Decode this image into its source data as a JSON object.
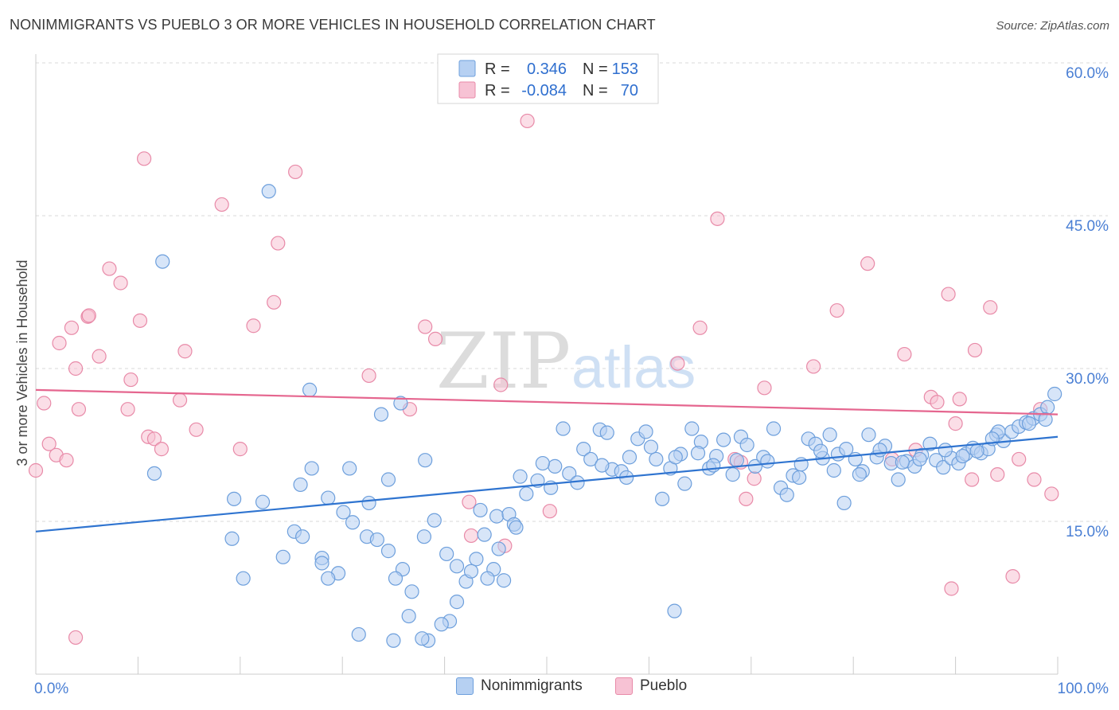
{
  "title": "NONIMMIGRANTS VS PUEBLO 3 OR MORE VEHICLES IN HOUSEHOLD CORRELATION CHART",
  "source": "Source: ZipAtlas.com",
  "watermark": {
    "zip": "ZIP",
    "atlas": "atlas"
  },
  "colors": {
    "blue_fill": "#b6d0f2",
    "blue_stroke": "#6d9fdc",
    "blue_line": "#2f74d0",
    "pink_fill": "#f7c2d4",
    "pink_stroke": "#e88aa8",
    "pink_line": "#e5668f",
    "tick_label": "#4a7fd4",
    "grid": "#d8d8d8"
  },
  "legend_box": {
    "rows": [
      {
        "r_label": "R =",
        "r_value": "0.346",
        "n_label": "N =",
        "n_value": "153"
      },
      {
        "r_label": "R =",
        "r_value": "-0.084",
        "n_label": "N =",
        "n_value": "70"
      }
    ]
  },
  "legend_bottom": [
    "Nonimmigrants",
    "Pueblo"
  ],
  "chart_data": {
    "type": "scatter",
    "title": "NONIMMIGRANTS VS PUEBLO 3 OR MORE VEHICLES IN HOUSEHOLD CORRELATION CHART",
    "xlabel": "",
    "ylabel": "3 or more Vehicles in Household",
    "xlim": [
      0,
      100
    ],
    "ylim": [
      0,
      60
    ],
    "x_tick_labels": [
      "0.0%",
      "100.0%"
    ],
    "y_ticks": [
      15,
      30,
      45,
      60
    ],
    "y_tick_labels": [
      "15.0%",
      "30.0%",
      "45.0%",
      "60.0%"
    ],
    "grid": true,
    "legend_position": "top-center",
    "series": [
      {
        "name": "Nonimmigrants",
        "color": "blue",
        "trend": {
          "x": [
            0,
            100
          ],
          "y": [
            14.0,
            23.3
          ]
        },
        "points": [
          [
            22.8,
            47.4
          ],
          [
            12.4,
            40.5
          ],
          [
            26.8,
            27.9
          ],
          [
            35.7,
            26.6
          ],
          [
            33.8,
            25.5
          ],
          [
            11.6,
            19.7
          ],
          [
            19.4,
            17.2
          ],
          [
            25.9,
            18.6
          ],
          [
            27.0,
            20.2
          ],
          [
            28.6,
            17.3
          ],
          [
            30.7,
            20.2
          ],
          [
            32.6,
            16.8
          ],
          [
            34.5,
            19.1
          ],
          [
            38.1,
            21.0
          ],
          [
            39.0,
            15.1
          ],
          [
            43.9,
            13.7
          ],
          [
            45.3,
            12.3
          ],
          [
            44.8,
            10.3
          ],
          [
            42.1,
            9.1
          ],
          [
            43.1,
            11.3
          ],
          [
            41.2,
            7.1
          ],
          [
            40.5,
            5.2
          ],
          [
            39.7,
            4.9
          ],
          [
            38.4,
            3.3
          ],
          [
            37.8,
            3.5
          ],
          [
            35.0,
            3.3
          ],
          [
            31.6,
            3.9
          ],
          [
            30.1,
            15.9
          ],
          [
            29.6,
            9.9
          ],
          [
            28.0,
            11.4
          ],
          [
            25.3,
            14.0
          ],
          [
            24.2,
            11.5
          ],
          [
            19.2,
            13.3
          ],
          [
            26.1,
            13.5
          ],
          [
            31.0,
            14.9
          ],
          [
            32.4,
            13.5
          ],
          [
            33.4,
            13.2
          ],
          [
            34.5,
            12.1
          ],
          [
            35.9,
            10.3
          ],
          [
            36.8,
            8.1
          ],
          [
            38.0,
            13.5
          ],
          [
            40.2,
            11.8
          ],
          [
            41.2,
            10.6
          ],
          [
            42.6,
            10.1
          ],
          [
            43.5,
            16.1
          ],
          [
            45.1,
            15.5
          ],
          [
            46.3,
            15.7
          ],
          [
            46.8,
            14.7
          ],
          [
            47.4,
            19.4
          ],
          [
            48.0,
            17.7
          ],
          [
            49.1,
            19.0
          ],
          [
            50.4,
            18.3
          ],
          [
            50.8,
            20.4
          ],
          [
            52.2,
            19.7
          ],
          [
            53.6,
            22.1
          ],
          [
            54.3,
            21.1
          ],
          [
            55.2,
            24.0
          ],
          [
            55.9,
            23.7
          ],
          [
            56.4,
            20.1
          ],
          [
            57.3,
            19.9
          ],
          [
            58.1,
            21.3
          ],
          [
            58.9,
            23.1
          ],
          [
            59.7,
            23.8
          ],
          [
            60.7,
            21.1
          ],
          [
            61.3,
            17.2
          ],
          [
            62.1,
            20.2
          ],
          [
            63.1,
            21.6
          ],
          [
            63.5,
            18.7
          ],
          [
            64.2,
            24.1
          ],
          [
            65.1,
            22.8
          ],
          [
            65.9,
            20.2
          ],
          [
            66.6,
            21.4
          ],
          [
            67.3,
            23.0
          ],
          [
            68.2,
            19.6
          ],
          [
            69.0,
            23.3
          ],
          [
            69.6,
            22.5
          ],
          [
            70.4,
            20.4
          ],
          [
            71.2,
            21.3
          ],
          [
            72.2,
            24.1
          ],
          [
            72.9,
            18.3
          ],
          [
            73.5,
            17.6
          ],
          [
            74.1,
            19.5
          ],
          [
            74.9,
            20.6
          ],
          [
            75.6,
            23.1
          ],
          [
            76.3,
            22.6
          ],
          [
            77.0,
            21.2
          ],
          [
            77.7,
            23.5
          ],
          [
            78.5,
            21.6
          ],
          [
            79.3,
            22.1
          ],
          [
            80.2,
            21.1
          ],
          [
            80.9,
            19.9
          ],
          [
            81.5,
            23.5
          ],
          [
            82.3,
            21.3
          ],
          [
            83.1,
            22.4
          ],
          [
            83.7,
            20.7
          ],
          [
            84.4,
            19.1
          ],
          [
            85.2,
            20.9
          ],
          [
            86.0,
            20.4
          ],
          [
            86.7,
            21.5
          ],
          [
            87.5,
            22.6
          ],
          [
            88.1,
            21.0
          ],
          [
            88.8,
            20.3
          ],
          [
            89.6,
            21.2
          ],
          [
            90.3,
            20.7
          ],
          [
            91.0,
            21.6
          ],
          [
            91.7,
            22.2
          ],
          [
            92.5,
            21.7
          ],
          [
            93.2,
            22.1
          ],
          [
            94.0,
            23.5
          ],
          [
            94.7,
            22.9
          ],
          [
            95.5,
            23.8
          ],
          [
            96.2,
            24.3
          ],
          [
            96.9,
            24.7
          ],
          [
            97.6,
            25.1
          ],
          [
            98.3,
            25.5
          ],
          [
            99.0,
            26.2
          ],
          [
            99.7,
            27.5
          ],
          [
            94.2,
            23.8
          ],
          [
            93.6,
            23.1
          ],
          [
            97.2,
            24.6
          ],
          [
            98.8,
            25.0
          ],
          [
            92.1,
            21.9
          ],
          [
            90.7,
            21.4
          ],
          [
            89.0,
            22.0
          ],
          [
            86.5,
            21.1
          ],
          [
            84.8,
            20.8
          ],
          [
            82.6,
            22.0
          ],
          [
            80.6,
            19.6
          ],
          [
            78.1,
            20.0
          ],
          [
            76.8,
            21.9
          ],
          [
            74.7,
            19.3
          ],
          [
            71.6,
            20.9
          ],
          [
            68.6,
            21.0
          ],
          [
            66.3,
            20.5
          ],
          [
            64.8,
            21.7
          ],
          [
            62.6,
            21.3
          ],
          [
            60.2,
            22.3
          ],
          [
            57.8,
            19.3
          ],
          [
            55.4,
            20.5
          ],
          [
            53.0,
            18.8
          ],
          [
            51.6,
            24.1
          ],
          [
            49.6,
            20.7
          ],
          [
            47.0,
            14.4
          ],
          [
            45.8,
            9.2
          ],
          [
            44.2,
            9.4
          ],
          [
            36.5,
            5.7
          ],
          [
            35.2,
            9.4
          ],
          [
            28.0,
            10.9
          ],
          [
            22.2,
            16.9
          ],
          [
            20.3,
            9.4
          ],
          [
            28.6,
            9.4
          ],
          [
            62.5,
            6.2
          ],
          [
            79.1,
            16.8
          ]
        ]
      },
      {
        "name": "Pueblo",
        "color": "pink",
        "trend": {
          "x": [
            0,
            100
          ],
          "y": [
            27.9,
            25.5
          ]
        },
        "points": [
          [
            0.0,
            20.0
          ],
          [
            0.8,
            26.6
          ],
          [
            1.3,
            22.6
          ],
          [
            2.0,
            21.5
          ],
          [
            2.3,
            32.5
          ],
          [
            3.0,
            21.0
          ],
          [
            3.5,
            34.0
          ],
          [
            3.9,
            30.0
          ],
          [
            4.2,
            26.0
          ],
          [
            5.1,
            35.1
          ],
          [
            5.2,
            35.2
          ],
          [
            6.2,
            31.2
          ],
          [
            7.2,
            39.8
          ],
          [
            8.3,
            38.4
          ],
          [
            9.0,
            26.0
          ],
          [
            9.3,
            28.9
          ],
          [
            10.2,
            34.7
          ],
          [
            10.6,
            50.6
          ],
          [
            11.0,
            23.3
          ],
          [
            11.6,
            23.1
          ],
          [
            12.3,
            22.1
          ],
          [
            14.1,
            26.9
          ],
          [
            14.6,
            31.7
          ],
          [
            15.7,
            24.0
          ],
          [
            18.2,
            46.1
          ],
          [
            20.0,
            22.1
          ],
          [
            21.3,
            34.2
          ],
          [
            23.3,
            36.5
          ],
          [
            23.7,
            42.3
          ],
          [
            25.4,
            49.3
          ],
          [
            32.6,
            29.3
          ],
          [
            36.6,
            26.0
          ],
          [
            38.1,
            34.1
          ],
          [
            39.1,
            32.9
          ],
          [
            42.4,
            16.9
          ],
          [
            42.6,
            13.6
          ],
          [
            45.5,
            28.4
          ],
          [
            45.9,
            12.6
          ],
          [
            48.1,
            54.3
          ],
          [
            50.3,
            16.0
          ],
          [
            62.8,
            30.5
          ],
          [
            65.0,
            34.0
          ],
          [
            66.7,
            44.7
          ],
          [
            68.4,
            21.1
          ],
          [
            69.0,
            20.8
          ],
          [
            69.5,
            17.2
          ],
          [
            70.3,
            19.2
          ],
          [
            71.3,
            28.1
          ],
          [
            76.1,
            30.2
          ],
          [
            78.4,
            35.7
          ],
          [
            81.4,
            40.3
          ],
          [
            83.8,
            21.1
          ],
          [
            85.0,
            31.4
          ],
          [
            86.1,
            22.0
          ],
          [
            87.6,
            27.2
          ],
          [
            88.2,
            26.7
          ],
          [
            89.3,
            37.3
          ],
          [
            89.6,
            8.4
          ],
          [
            90.0,
            24.6
          ],
          [
            90.4,
            27.0
          ],
          [
            91.6,
            19.1
          ],
          [
            91.9,
            31.8
          ],
          [
            93.4,
            36.0
          ],
          [
            94.1,
            19.6
          ],
          [
            95.6,
            9.6
          ],
          [
            96.2,
            21.1
          ],
          [
            97.7,
            19.1
          ],
          [
            98.3,
            26.0
          ],
          [
            99.4,
            17.7
          ],
          [
            3.9,
            3.6
          ]
        ]
      }
    ]
  }
}
